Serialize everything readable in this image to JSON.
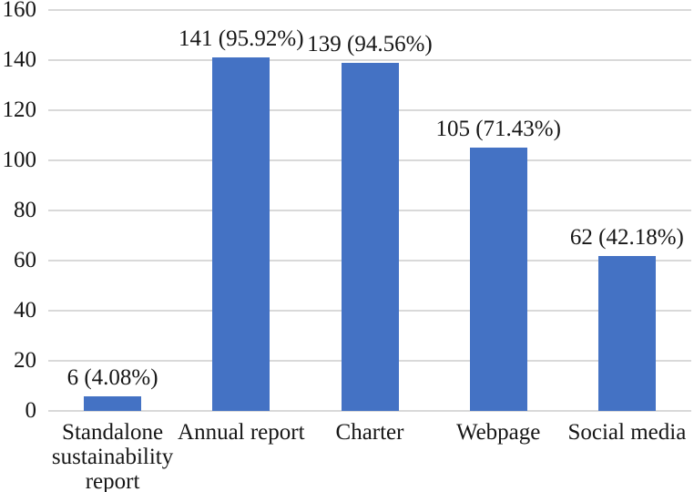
{
  "chart_data": {
    "type": "bar",
    "title": "",
    "xlabel": "",
    "ylabel": "",
    "categories": [
      "Standalone sustainability report",
      "Annual report",
      "Charter",
      "Webpage",
      "Social media"
    ],
    "values": [
      6,
      141,
      139,
      105,
      62
    ],
    "value_labels": [
      "6 (4.08%)",
      "141 (95.92%)",
      "139 (94.56%)",
      "105 (71.43%)",
      "62 (42.18%)"
    ],
    "percentages": [
      4.08,
      95.92,
      94.56,
      71.43,
      42.18
    ],
    "ylim": [
      0,
      160
    ],
    "yticks": [
      0,
      20,
      40,
      60,
      80,
      100,
      120,
      140,
      160
    ],
    "grid": true,
    "legend": "none",
    "colors": {
      "bar": "#4472c4",
      "gridline": "#d9d9d9",
      "text": "#161616",
      "background": "#ffffff"
    }
  }
}
